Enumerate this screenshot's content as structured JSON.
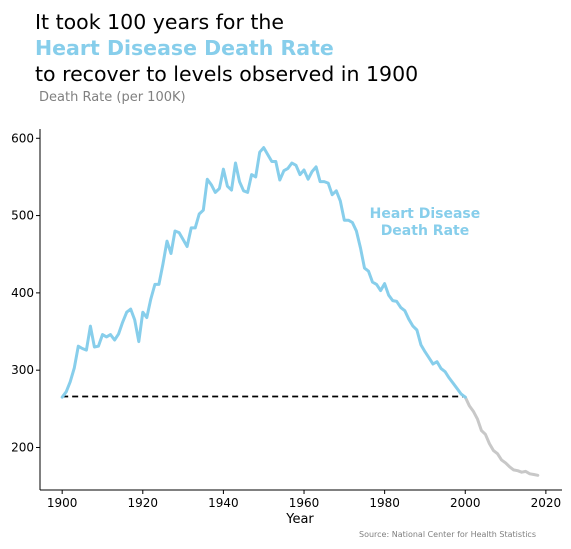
{
  "title": {
    "line1": "It took 100 years for the",
    "line2": "Heart Disease Death Rate",
    "line3": "to recover to levels observed in 1900"
  },
  "subtitle": "Death Rate (per 100K)",
  "source": "Source: National Center for Health Statistics",
  "colors": {
    "accent": "#87CEEB",
    "projection": "#C8C8C8",
    "axis": "#000000",
    "muted": "#808080"
  },
  "chart_data": {
    "type": "line",
    "title": "It took 100 years for the Heart Disease Death Rate to recover to levels observed in 1900",
    "xlabel": "Year",
    "ylabel": "Death Rate (per 100K)",
    "xlim": [
      1894.5,
      2024
    ],
    "ylim": [
      145,
      612
    ],
    "x_ticks": [
      1900,
      1920,
      1940,
      1960,
      1980,
      2000,
      2020
    ],
    "y_ticks": [
      200,
      300,
      400,
      500,
      600
    ],
    "grid": false,
    "series": [
      {
        "name": "Heart Disease Death Rate",
        "color": "#87CEEB",
        "points": [
          [
            1900,
            265
          ],
          [
            1901,
            272
          ],
          [
            1902,
            285
          ],
          [
            1903,
            303
          ],
          [
            1904,
            331
          ],
          [
            1905,
            328
          ],
          [
            1906,
            326
          ],
          [
            1907,
            357
          ],
          [
            1908,
            330
          ],
          [
            1909,
            331
          ],
          [
            1910,
            346
          ],
          [
            1911,
            343
          ],
          [
            1912,
            346
          ],
          [
            1913,
            339
          ],
          [
            1914,
            347
          ],
          [
            1915,
            362
          ],
          [
            1916,
            375
          ],
          [
            1917,
            379
          ],
          [
            1918,
            365
          ],
          [
            1919,
            337
          ],
          [
            1920,
            375
          ],
          [
            1921,
            368
          ],
          [
            1922,
            392
          ],
          [
            1923,
            411
          ],
          [
            1924,
            411
          ],
          [
            1925,
            437
          ],
          [
            1926,
            467
          ],
          [
            1927,
            451
          ],
          [
            1928,
            480
          ],
          [
            1929,
            478
          ],
          [
            1930,
            469
          ],
          [
            1931,
            460
          ],
          [
            1932,
            484
          ],
          [
            1933,
            484
          ],
          [
            1934,
            502
          ],
          [
            1935,
            507
          ],
          [
            1936,
            547
          ],
          [
            1937,
            540
          ],
          [
            1938,
            530
          ],
          [
            1939,
            535
          ],
          [
            1940,
            560
          ],
          [
            1941,
            538
          ],
          [
            1942,
            533
          ],
          [
            1943,
            568
          ],
          [
            1944,
            544
          ],
          [
            1945,
            532
          ],
          [
            1946,
            530
          ],
          [
            1947,
            553
          ],
          [
            1948,
            550
          ],
          [
            1949,
            582
          ],
          [
            1950,
            588
          ],
          [
            1951,
            579
          ],
          [
            1952,
            570
          ],
          [
            1953,
            570
          ],
          [
            1954,
            546
          ],
          [
            1955,
            558
          ],
          [
            1956,
            561
          ],
          [
            1957,
            568
          ],
          [
            1958,
            565
          ],
          [
            1959,
            553
          ],
          [
            1960,
            559
          ],
          [
            1961,
            547
          ],
          [
            1962,
            557
          ],
          [
            1963,
            563
          ],
          [
            1964,
            544
          ],
          [
            1965,
            544
          ],
          [
            1966,
            542
          ],
          [
            1967,
            527
          ],
          [
            1968,
            532
          ],
          [
            1969,
            519
          ],
          [
            1970,
            494
          ],
          [
            1971,
            494
          ],
          [
            1972,
            491
          ],
          [
            1973,
            480
          ],
          [
            1974,
            458
          ],
          [
            1975,
            432
          ],
          [
            1976,
            428
          ],
          [
            1977,
            414
          ],
          [
            1978,
            411
          ],
          [
            1979,
            403
          ],
          [
            1980,
            412
          ],
          [
            1981,
            397
          ],
          [
            1982,
            390
          ],
          [
            1983,
            389
          ],
          [
            1984,
            381
          ],
          [
            1985,
            377
          ],
          [
            1986,
            366
          ],
          [
            1987,
            357
          ],
          [
            1988,
            352
          ],
          [
            1989,
            333
          ],
          [
            1990,
            324
          ],
          [
            1991,
            316
          ],
          [
            1992,
            308
          ],
          [
            1993,
            311
          ],
          [
            1994,
            302
          ],
          [
            1995,
            298
          ],
          [
            1996,
            290
          ],
          [
            1997,
            283
          ],
          [
            1998,
            276
          ],
          [
            1999,
            269
          ],
          [
            2000,
            265
          ]
        ]
      },
      {
        "name": "",
        "color": "#C8C8C8",
        "points": [
          [
            2000,
            265
          ],
          [
            2001,
            254
          ],
          [
            2002,
            247
          ],
          [
            2003,
            237
          ],
          [
            2004,
            222
          ],
          [
            2005,
            217
          ],
          [
            2006,
            205
          ],
          [
            2007,
            196
          ],
          [
            2008,
            192
          ],
          [
            2009,
            184
          ],
          [
            2010,
            180
          ],
          [
            2011,
            175
          ],
          [
            2012,
            171
          ],
          [
            2013,
            170
          ],
          [
            2014,
            168
          ],
          [
            2015,
            169
          ],
          [
            2016,
            166
          ],
          [
            2017,
            165
          ],
          [
            2018,
            164
          ]
        ]
      }
    ],
    "reference_line": {
      "style": "dashed",
      "color": "#000000",
      "y": 266,
      "x_start": 1900,
      "x_end": 2000
    },
    "annotation": {
      "text_line1": "Heart Disease",
      "text_line2": "Death Rate",
      "x": 1990,
      "y": 497
    }
  }
}
